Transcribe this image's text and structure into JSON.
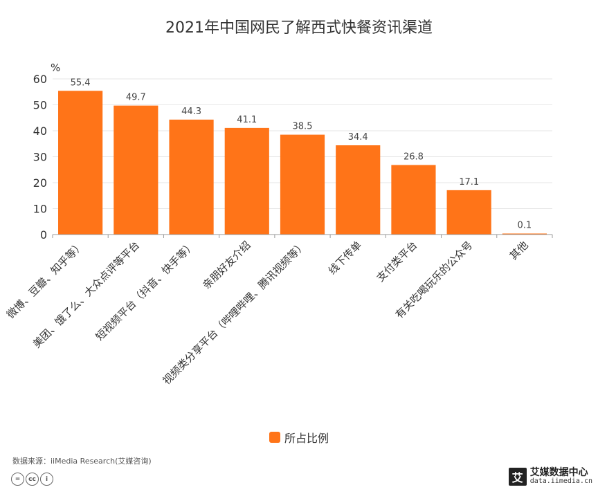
{
  "title": "2021年中国网民了解西式快餐资讯渠道",
  "source": "数据来源：iiMedia Research(艾媒咨询)",
  "brand": {
    "logo_char": "艾",
    "name": "艾媒数据中心",
    "url": "data.iimedia.cn"
  },
  "license_icons": [
    "=",
    "cc",
    "i"
  ],
  "colors": {
    "bar": "#FF7418",
    "grid": "#e6e6e6",
    "axis": "#999999"
  },
  "chart_data": {
    "type": "bar",
    "title": "2021年中国网民了解西式快餐资讯渠道",
    "ylabel": "%",
    "ylim": [
      0,
      60
    ],
    "yticks": [
      0,
      10,
      20,
      30,
      40,
      50,
      60
    ],
    "grid": true,
    "legend": "bottom-center",
    "categories": [
      "微博、豆瓣、知乎等）",
      "美团、饿了么、大众点评等平台",
      "短视频平台（抖音、快手等）",
      "亲朋好友介绍",
      "视频类分享平台（哔哩哔哩、腾讯视频等）",
      "线下传单",
      "支付类平台",
      "有关吃喝玩乐的公众号",
      "其他"
    ],
    "series": [
      {
        "name": "所占比例",
        "values": [
          55.4,
          49.7,
          44.3,
          41.1,
          38.5,
          34.4,
          26.8,
          17.1,
          0.1
        ],
        "labels": [
          "55.4",
          "49.7",
          "44.3",
          "41.1",
          "38.5",
          "34.4",
          "26.8",
          "17.1",
          "0.1"
        ]
      }
    ]
  }
}
